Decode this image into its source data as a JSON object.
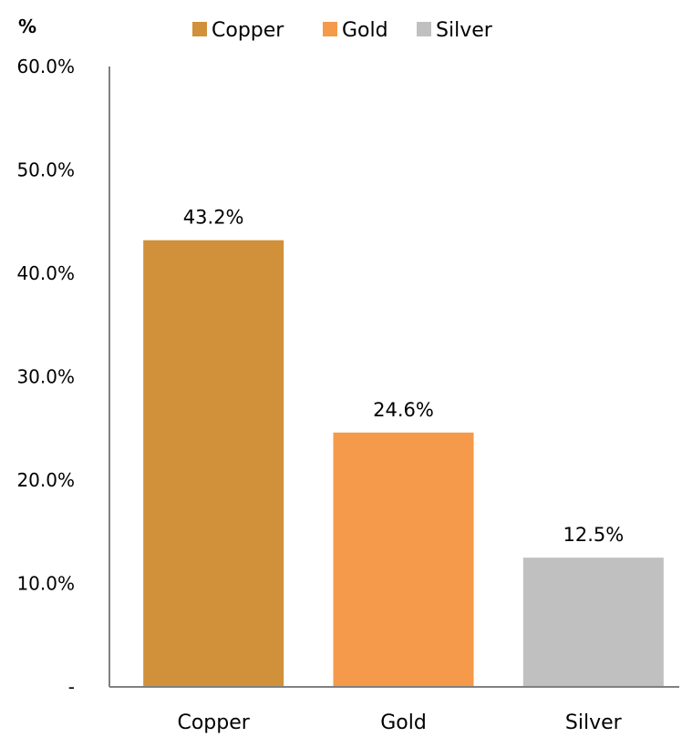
{
  "chart_data": {
    "type": "bar",
    "unit_label": "%",
    "categories": [
      "Copper",
      "Gold",
      "Silver"
    ],
    "values": [
      43.2,
      24.6,
      12.5
    ],
    "data_labels": [
      "43.2%",
      "24.6%",
      "12.5%"
    ],
    "colors": [
      "#D0913A",
      "#F59A4A",
      "#C0C0C0"
    ],
    "ylim": [
      0,
      60
    ],
    "yticks": [
      0,
      10,
      20,
      30,
      40,
      50,
      60
    ],
    "ytick_labels": [
      "-",
      "10.0%",
      "20.0%",
      "30.0%",
      "40.0%",
      "50.0%",
      "60.0%"
    ],
    "legend": {
      "position": "top",
      "entries": [
        "Copper",
        "Gold",
        "Silver"
      ]
    },
    "grid": false,
    "axis_color": "#808080"
  }
}
